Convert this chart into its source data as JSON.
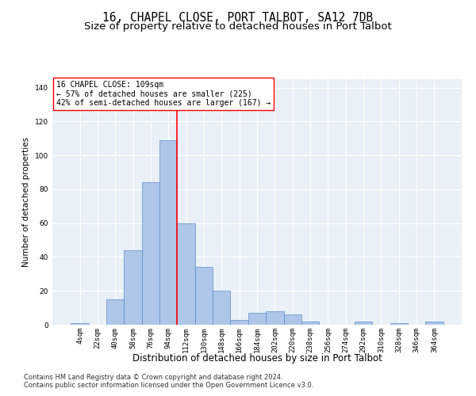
{
  "title1": "16, CHAPEL CLOSE, PORT TALBOT, SA12 7DB",
  "title2": "Size of property relative to detached houses in Port Talbot",
  "xlabel": "Distribution of detached houses by size in Port Talbot",
  "ylabel": "Number of detached properties",
  "bar_labels": [
    "4sqm",
    "22sqm",
    "40sqm",
    "58sqm",
    "76sqm",
    "94sqm",
    "112sqm",
    "130sqm",
    "148sqm",
    "166sqm",
    "184sqm",
    "202sqm",
    "220sqm",
    "238sqm",
    "256sqm",
    "274sqm",
    "292sqm",
    "310sqm",
    "328sqm",
    "346sqm",
    "364sqm"
  ],
  "bar_values": [
    1,
    0,
    15,
    44,
    84,
    109,
    60,
    34,
    20,
    3,
    7,
    8,
    6,
    2,
    0,
    0,
    2,
    0,
    1,
    0,
    2
  ],
  "bar_color": "#aec6e8",
  "bar_edge_color": "#5b8fc9",
  "bar_width": 1.0,
  "vline_x": 5.5,
  "vline_color": "red",
  "annotation_line1": "16 CHAPEL CLOSE: 109sqm",
  "annotation_line2": "← 57% of detached houses are smaller (225)",
  "annotation_line3": "42% of semi-detached houses are larger (167) →",
  "annotation_box_color": "red",
  "annotation_box_facecolor": "white",
  "ylim": [
    0,
    145
  ],
  "yticks": [
    0,
    20,
    40,
    60,
    80,
    100,
    120,
    140
  ],
  "background_color": "#eaf0f8",
  "grid_color": "white",
  "footer1": "Contains HM Land Registry data © Crown copyright and database right 2024.",
  "footer2": "Contains public sector information licensed under the Open Government Licence v3.0.",
  "title1_fontsize": 10.5,
  "title2_fontsize": 9.5,
  "xlabel_fontsize": 8.5,
  "ylabel_fontsize": 7.5,
  "tick_fontsize": 6.5,
  "annotation_fontsize": 7,
  "footer_fontsize": 6
}
